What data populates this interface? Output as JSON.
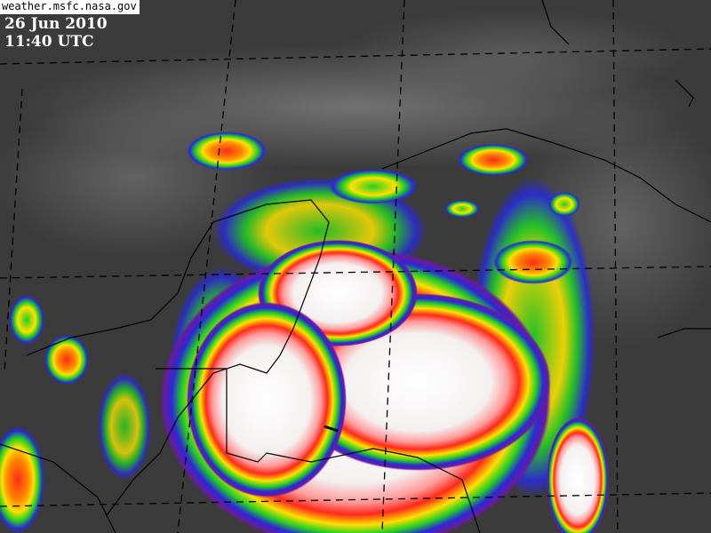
{
  "image": {
    "source_label": "weather.msfc.nasa.gov",
    "date": "26 Jun 2010",
    "time": "11:40 UTC",
    "type": "enhanced infrared satellite imagery",
    "colors": {
      "background": "#3b3b3b",
      "coldest_tops": "#ffffff",
      "red": "#ff2a1a",
      "yellow": "#ffe000",
      "green": "#22d022",
      "blue": "#2a2ad8",
      "purple": "#6a1aa0",
      "grid_lines": "#000000"
    }
  }
}
